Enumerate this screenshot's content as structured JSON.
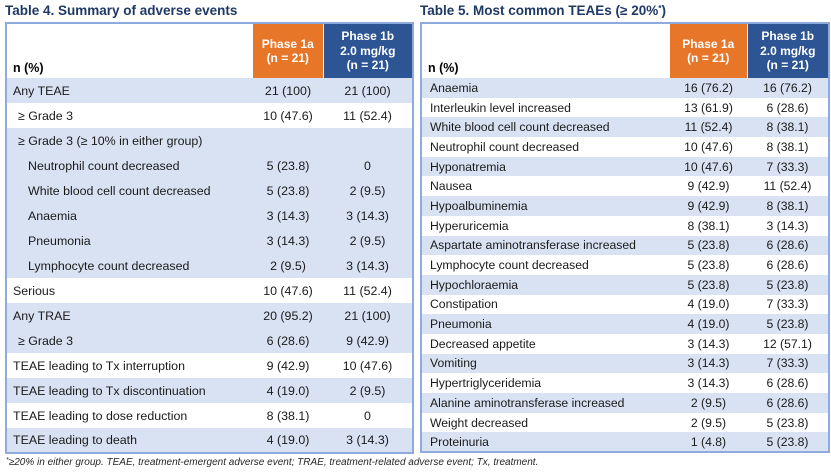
{
  "colors": {
    "orange_header": "#E87628",
    "blue_header": "#2D5493",
    "row_shade_blue": "#D9E2F3",
    "table_border": "#8FAADC",
    "title_navy": "#1F3864"
  },
  "table4": {
    "title": "Table 4. Summary of adverse events",
    "col_label": "n (%)",
    "columns": [
      "Phase 1a\n(n = 21)",
      "Phase 1b\n2.0 mg/kg\n(n = 21)"
    ],
    "rows": [
      {
        "label": "Any TEAE",
        "phase1a": "21 (100)",
        "phase1b": "21 (100)",
        "indent": 0,
        "shaded": true
      },
      {
        "label": "≥ Grade 3",
        "phase1a": "10 (47.6)",
        "phase1b": "11 (52.4)",
        "indent": 1,
        "shaded": false
      },
      {
        "label": "≥ Grade 3 (≥ 10% in either group)",
        "phase1a": "",
        "phase1b": "",
        "indent": 1,
        "shaded": true
      },
      {
        "label": "Neutrophil count decreased",
        "phase1a": "5 (23.8)",
        "phase1b": "0",
        "indent": 2,
        "shaded": true
      },
      {
        "label": "White blood cell count decreased",
        "phase1a": "5 (23.8)",
        "phase1b": "2 (9.5)",
        "indent": 2,
        "shaded": true
      },
      {
        "label": "Anaemia",
        "phase1a": "3 (14.3)",
        "phase1b": "3 (14.3)",
        "indent": 2,
        "shaded": true
      },
      {
        "label": "Pneumonia",
        "phase1a": "3 (14.3)",
        "phase1b": "2 (9.5)",
        "indent": 2,
        "shaded": true
      },
      {
        "label": "Lymphocyte count decreased",
        "phase1a": "2 (9.5)",
        "phase1b": "3 (14.3)",
        "indent": 2,
        "shaded": true
      },
      {
        "label": "Serious",
        "phase1a": "10 (47.6)",
        "phase1b": "11 (52.4)",
        "indent": 0,
        "shaded": false
      },
      {
        "label": "Any TRAE",
        "phase1a": "20 (95.2)",
        "phase1b": "21 (100)",
        "indent": 0,
        "shaded": true
      },
      {
        "label": "≥ Grade 3",
        "phase1a": "6 (28.6)",
        "phase1b": "9 (42.9)",
        "indent": 1,
        "shaded": true
      },
      {
        "label": "TEAE leading to Tx interruption",
        "phase1a": "9 (42.9)",
        "phase1b": "10 (47.6)",
        "indent": 0,
        "shaded": false
      },
      {
        "label": "TEAE leading to Tx discontinuation",
        "phase1a": "4 (19.0)",
        "phase1b": "2 (9.5)",
        "indent": 0,
        "shaded": true
      },
      {
        "label": "TEAE leading to dose reduction",
        "phase1a": "8 (38.1)",
        "phase1b": "0",
        "indent": 0,
        "shaded": false
      },
      {
        "label": "TEAE leading to death",
        "phase1a": "4 (19.0)",
        "phase1b": "3 (14.3)",
        "indent": 0,
        "shaded": true
      }
    ]
  },
  "table5": {
    "title_pre": "Table 5. Most common TEAEs (≥ 20%",
    "title_sup": "*",
    "title_post": ")",
    "col_label": "n (%)",
    "columns": [
      "Phase 1a\n(n = 21)",
      "Phase 1b\n2.0 mg/kg\n(n = 21)"
    ],
    "rows": [
      {
        "label": "Anaemia",
        "phase1a": "16 (76.2)",
        "phase1b": "16 (76.2)"
      },
      {
        "label": "Interleukin level increased",
        "phase1a": "13 (61.9)",
        "phase1b": "6 (28.6)"
      },
      {
        "label": "White blood cell count decreased",
        "phase1a": "11 (52.4)",
        "phase1b": "8 (38.1)"
      },
      {
        "label": "Neutrophil count decreased",
        "phase1a": "10 (47.6)",
        "phase1b": "8 (38.1)"
      },
      {
        "label": "Hyponatremia",
        "phase1a": "10 (47.6)",
        "phase1b": "7 (33.3)"
      },
      {
        "label": "Nausea",
        "phase1a": "9 (42.9)",
        "phase1b": "11 (52.4)"
      },
      {
        "label": "Hypoalbuminemia",
        "phase1a": "9 (42.9)",
        "phase1b": "8 (38.1)"
      },
      {
        "label": "Hyperuricemia",
        "phase1a": "8 (38.1)",
        "phase1b": "3 (14.3)"
      },
      {
        "label": "Aspartate aminotransferase increased",
        "phase1a": "5 (23.8)",
        "phase1b": "6 (28.6)"
      },
      {
        "label": "Lymphocyte count decreased",
        "phase1a": "5 (23.8)",
        "phase1b": "6 (28.6)"
      },
      {
        "label": "Hypochloraemia",
        "phase1a": "5 (23.8)",
        "phase1b": "5 (23.8)"
      },
      {
        "label": "Constipation",
        "phase1a": "4 (19.0)",
        "phase1b": "7 (33.3)"
      },
      {
        "label": "Pneumonia",
        "phase1a": "4 (19.0)",
        "phase1b": "5 (23.8)"
      },
      {
        "label": "Decreased appetite",
        "phase1a": "3 (14.3)",
        "phase1b": "12 (57.1)"
      },
      {
        "label": "Vomiting",
        "phase1a": "3 (14.3)",
        "phase1b": "7 (33.3)"
      },
      {
        "label": "Hypertriglyceridemia",
        "phase1a": "3 (14.3)",
        "phase1b": "6 (28.6)"
      },
      {
        "label": "Alanine aminotransferase increased",
        "phase1a": "2 (9.5)",
        "phase1b": "6 (28.6)"
      },
      {
        "label": "Weight decreased",
        "phase1a": "2 (9.5)",
        "phase1b": "5 (23.8)"
      },
      {
        "label": "Proteinuria",
        "phase1a": "1 (4.8)",
        "phase1b": "5 (23.8)"
      }
    ]
  },
  "footnote": {
    "sup": "*",
    "text": "≥20% in either group. TEAE, treatment-emergent adverse event; TRAE, treatment-related adverse event; Tx, treatment."
  }
}
